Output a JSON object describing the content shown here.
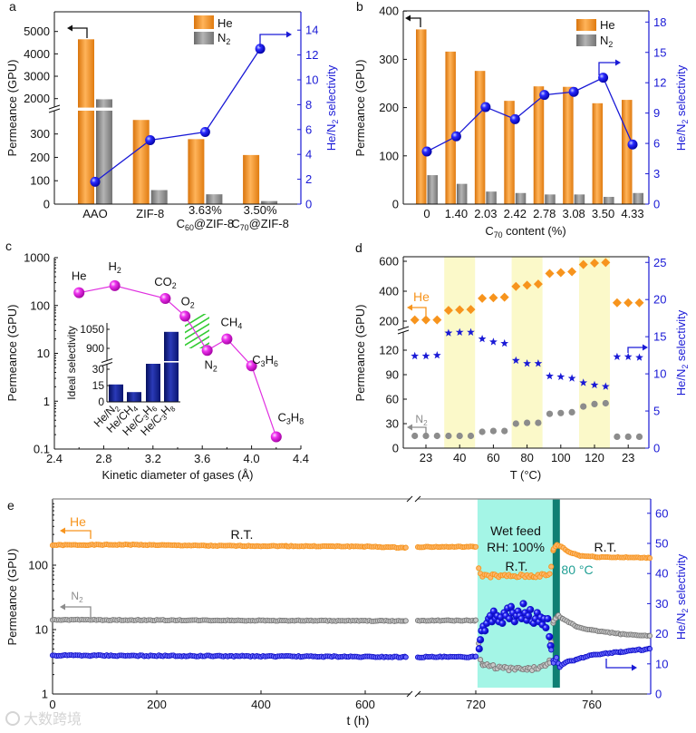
{
  "colors": {
    "he": "#f7941d",
    "n2": "#8c8c8c",
    "selectivity": "#1a1ad6",
    "c_points": "#e030e0",
    "inset_bars": "#0d1a8a",
    "wet_band": "#a4f5e6",
    "hot_band": "#0f7f73",
    "temp_band": "#fbf9c9",
    "hatch": "#33cc33"
  },
  "figure": {
    "watermark": "大数跨境"
  },
  "chart_data": [
    {
      "panel_label": "a",
      "type": "bar+line",
      "categories": [
        {
          "line1": [
            "AAO"
          ]
        },
        {
          "line1": [
            "ZIF-8"
          ]
        },
        {
          "line1": [
            "3.63%"
          ],
          "line2": [
            "C",
            "60",
            "@ZIF-8"
          ]
        },
        {
          "line1": [
            "3.50%"
          ],
          "line2": [
            "C",
            "70",
            "@ZIF-8"
          ]
        }
      ],
      "series": [
        {
          "name": [
            "He"
          ],
          "type": "bar",
          "axis": "left",
          "values": [
            4650,
            360,
            278,
            210
          ]
        },
        {
          "name": [
            "N",
            "2"
          ],
          "type": "bar",
          "axis": "left",
          "values": [
            1970,
            60,
            42,
            13
          ]
        },
        {
          "name": [
            "He/N",
            "2",
            " selectivity"
          ],
          "type": "line",
          "axis": "right",
          "values": [
            1.8,
            5.15,
            5.8,
            12.5
          ]
        }
      ],
      "ylabel": [
        "Permeance (GPU)"
      ],
      "y2label": [
        "He/N",
        "2",
        " selectivity"
      ],
      "yticks": [
        0,
        100,
        200,
        300,
        2000,
        3000,
        4000,
        5000
      ],
      "y_break": [
        400,
        1600
      ],
      "y2ticks": [
        0,
        2,
        4,
        6,
        8,
        10,
        12,
        14
      ],
      "y2lim": [
        0,
        15.5
      ],
      "legend": "top-right"
    },
    {
      "panel_label": "b",
      "type": "bar+line",
      "categories": [
        "0",
        "1.40",
        "2.03",
        "2.42",
        "2.78",
        "3.08",
        "3.50",
        "4.33"
      ],
      "series": [
        {
          "name": [
            "He"
          ],
          "type": "bar",
          "axis": "left",
          "values": [
            362,
            316,
            276,
            214,
            244,
            243,
            209,
            216
          ]
        },
        {
          "name": [
            "N",
            "2"
          ],
          "type": "bar",
          "axis": "left",
          "values": [
            60,
            42,
            26,
            23,
            20,
            20,
            15,
            23
          ]
        },
        {
          "name": [
            "He/N",
            "2",
            " selectivity"
          ],
          "type": "line",
          "axis": "right",
          "values": [
            5.2,
            6.7,
            9.6,
            8.4,
            10.8,
            11.1,
            12.5,
            5.9
          ]
        }
      ],
      "xlabel": [
        "C",
        "70",
        " content (%)"
      ],
      "ylabel": [
        "Permeance (GPU)"
      ],
      "y2label": [
        "He/N",
        "2",
        " selectivity"
      ],
      "yticks": [
        0,
        100,
        200,
        300,
        400
      ],
      "ylim": [
        0,
        400
      ],
      "y2ticks": [
        0,
        3,
        6,
        9,
        12,
        15,
        18
      ],
      "y2lim": [
        0,
        19.1
      ],
      "legend": "top-right"
    },
    {
      "panel_label": "c",
      "type": "line",
      "yscale": "log",
      "points": [
        {
          "label": [
            "He"
          ],
          "x": 2.6,
          "y": 185
        },
        {
          "label": [
            "H",
            "2"
          ],
          "x": 2.89,
          "y": 260
        },
        {
          "label": [
            "CO",
            "2"
          ],
          "x": 3.3,
          "y": 140
        },
        {
          "label": [
            "O",
            "2"
          ],
          "x": 3.46,
          "y": 60
        },
        {
          "label": [
            "N",
            "2"
          ],
          "x": 3.64,
          "y": 11.5
        },
        {
          "label": [
            "CH",
            "4"
          ],
          "x": 3.8,
          "y": 20
        },
        {
          "label": [
            "C",
            "3",
            "H",
            "6"
          ],
          "x": 4.0,
          "y": 5.5
        },
        {
          "label": [
            "C",
            "3",
            "H",
            "8"
          ],
          "x": 4.2,
          "y": 0.18
        }
      ],
      "xlabel": [
        "Kinetic diameter of gases (Å)"
      ],
      "ylabel": [
        "Permeance (GPU)"
      ],
      "xticks": [
        "2.4",
        "2.8",
        "3.2",
        "3.6",
        "4.0",
        "4.4"
      ],
      "xlim": [
        2.4,
        4.4
      ],
      "yticks": [
        "0.1",
        "1",
        "10",
        "100",
        "1000"
      ],
      "ylim": [
        0.1,
        1000
      ],
      "inset": {
        "type": "bar",
        "categories": [
          [
            "He/N",
            "2"
          ],
          [
            "He/CH",
            "4"
          ],
          [
            "He/C",
            "3",
            "H",
            "6"
          ],
          [
            "He/C",
            "3",
            "H",
            "8"
          ]
        ],
        "values": [
          16,
          9,
          35,
          1030
        ],
        "ylabel": [
          "Ideal selectivity"
        ],
        "yticks": [
          "0",
          "15",
          "30",
          "900",
          "1050"
        ],
        "y_break": [
          35,
          850
        ]
      }
    },
    {
      "panel_label": "d",
      "type": "scatter",
      "xlabel": [
        "T (°C)"
      ],
      "ylabel": [
        "Permeance (GPU)"
      ],
      "y2label": [
        "He/N",
        "2",
        " selectivity"
      ],
      "xticks": [
        "23",
        "40",
        "60",
        "80",
        "100",
        "120",
        "23"
      ],
      "highlighted_groups": [
        1,
        3,
        5
      ],
      "series": [
        {
          "name": [
            "He"
          ],
          "axis": "left",
          "marker": "diamond",
          "groups": [
            [
              208,
              208,
              208
            ],
            [
              272,
              276,
              278
            ],
            [
              352,
              356,
              360
            ],
            [
              432,
              440,
              448
            ],
            [
              518,
              524,
              530
            ],
            [
              578,
              588,
              592
            ],
            [
              178,
              178,
              178
            ]
          ]
        },
        {
          "name": [
            "N",
            "2"
          ],
          "axis": "left",
          "marker": "circle",
          "groups": [
            [
              15,
              15,
              15
            ],
            [
              15,
              15,
              15
            ],
            [
              20,
              21,
              21
            ],
            [
              30,
              31,
              31
            ],
            [
              42,
              43,
              44
            ],
            [
              51,
              54,
              55
            ],
            [
              14,
              14,
              14
            ]
          ]
        },
        {
          "name": [
            "He/N",
            "2",
            " selectivity"
          ],
          "axis": "right",
          "marker": "star",
          "groups": [
            [
              12.4,
              12.4,
              12.5
            ],
            [
              15.5,
              15.6,
              15.6
            ],
            [
              14.7,
              14.3,
              14.1
            ],
            [
              11.8,
              11.4,
              11.4
            ],
            [
              9.7,
              9.6,
              9.4
            ],
            [
              8.8,
              8.5,
              8.3
            ],
            [
              12.3,
              12.3,
              12.2
            ]
          ]
        }
      ],
      "yticks": [
        0,
        30,
        60,
        90,
        120,
        200,
        400,
        600
      ],
      "y_break": [
        140,
        180
      ],
      "y2ticks": [
        0,
        5,
        10,
        15,
        20,
        25
      ]
    },
    {
      "panel_label": "e",
      "type": "scatter",
      "yscale": "log",
      "xlabel": [
        "t (h)"
      ],
      "ylabel": [
        "Permeance (GPU)"
      ],
      "y2label": [
        "He/N",
        "2",
        " selectivity"
      ],
      "xticks": [
        0,
        200,
        400,
        600,
        720,
        760
      ],
      "x_break": [
        690,
        700
      ],
      "yticks": [
        "1",
        "10",
        "100"
      ],
      "y2ticks": [
        0,
        10,
        20,
        30,
        40,
        50,
        60
      ],
      "wet_feed_period_h": [
        720.6,
        746.5
      ],
      "heating_period_h": [
        746.5,
        749
      ],
      "annotations": {
        "rt1": [
          "R.T."
        ],
        "wet": [
          "Wet feed"
        ],
        "rh": [
          "RH: 100%"
        ],
        "rt2": [
          "R.T."
        ],
        "hot": [
          "80 °C"
        ],
        "rt3": [
          "R.T."
        ]
      },
      "series": [
        {
          "name": [
            "He"
          ],
          "axis": "left",
          "segments": [
            {
              "points": [
                [
                  0,
                  205
                ],
                [
                  150,
                  208
                ],
                [
                  300,
                  200
                ],
                [
                  450,
                  198
                ],
                [
                  600,
                  195
                ],
                [
                  678,
                  186
                ]
              ]
            },
            {
              "points": [
                [
                  700,
                  192
                ],
                [
                  720,
                  193
                ]
              ]
            },
            {
              "noisy": true,
              "points": [
                [
                  721,
                  95
                ],
                [
                  721.6,
                  70
                ],
                [
                  730,
                  67
                ],
                [
                  740,
                  68
                ],
                [
                  745.5,
                  70
                ]
              ]
            },
            {
              "points": [
                [
                  746,
                  95
                ],
                [
                  746.8,
                  180
                ],
                [
                  748,
                  205
                ],
                [
                  749.5,
                  195
                ],
                [
                  752,
                  160
                ],
                [
                  756,
                  140
                ],
                [
                  762,
                  134
                ],
                [
                  780,
                  130
                ]
              ]
            }
          ]
        },
        {
          "name": [
            "N",
            "2"
          ],
          "axis": "left",
          "segments": [
            {
              "points": [
                [
                  0,
                  14.2
                ],
                [
                  300,
                  13.9
                ],
                [
                  678,
                  13.6
                ]
              ]
            },
            {
              "points": [
                [
                  700,
                  13.8
                ],
                [
                  720,
                  13.8
                ]
              ]
            },
            {
              "noisy": true,
              "points": [
                [
                  721,
                  6
                ],
                [
                  721.6,
                  3.4
                ],
                [
                  722.5,
                  2.8
                ],
                [
                  730,
                  2.5
                ],
                [
                  738,
                  2.4
                ],
                [
                  744,
                  2.7
                ],
                [
                  745.5,
                  3.2
                ]
              ]
            },
            {
              "points": [
                [
                  746,
                  6.5
                ],
                [
                  746.8,
                  13.5
                ],
                [
                  748.5,
                  16.5
                ],
                [
                  750,
                  14.5
                ],
                [
                  755,
                  11
                ],
                [
                  760,
                  9.8
                ],
                [
                  770,
                  8.5
                ],
                [
                  780,
                  8
                ]
              ]
            }
          ]
        },
        {
          "name": [
            "He/N",
            "2",
            " selectivity"
          ],
          "axis": "right",
          "segments": [
            {
              "points": [
                [
                  0,
                  12.8
                ],
                [
                  300,
                  12.6
                ],
                [
                  678,
                  12.3
                ]
              ]
            },
            {
              "points": [
                [
                  700,
                  12.3
                ],
                [
                  720,
                  12.3
                ]
              ]
            },
            {
              "raw": true,
              "points": [
                [
                  721.2,
                  15
                ],
                [
                  721.6,
                  18
                ],
                [
                  722,
                  21
                ],
                [
                  722.6,
                  22.5
                ],
                [
                  723.2,
                  21
                ],
                [
                  723.8,
                  23.5
                ],
                [
                  724.4,
                  25
                ],
                [
                  725,
                  26
                ],
                [
                  725.6,
                  24
                ],
                [
                  726.2,
                  27.5
                ],
                [
                  726.8,
                  25
                ],
                [
                  727.4,
                  26
                ],
                [
                  728,
                  24
                ],
                [
                  728.6,
                  25.5
                ],
                [
                  729.2,
                  23.5
                ],
                [
                  729.8,
                  27
                ],
                [
                  730.4,
                  26
                ],
                [
                  731,
                  28.5
                ],
                [
                  731.6,
                  25
                ],
                [
                  732.2,
                  29
                ],
                [
                  732.8,
                  27
                ],
                [
                  733.4,
                  24
                ],
                [
                  734,
                  26
                ],
                [
                  734.6,
                  27.5
                ],
                [
                  735.2,
                  26
                ],
                [
                  735.8,
                  25
                ],
                [
                  736.4,
                  30
                ],
                [
                  737,
                  27
                ],
                [
                  737.6,
                  24.5
                ],
                [
                  738.2,
                  26
                ],
                [
                  738.8,
                  28
                ],
                [
                  739.4,
                  24
                ],
                [
                  740,
                  23.5
                ],
                [
                  740.6,
                  25
                ],
                [
                  741.2,
                  27
                ],
                [
                  741.8,
                  24
                ],
                [
                  742.4,
                  25.5
                ],
                [
                  743,
                  23
                ],
                [
                  743.6,
                  25
                ],
                [
                  744.2,
                  22
                ],
                [
                  744.8,
                  25
                ],
                [
                  745.4,
                  19
                ],
                [
                  745.8,
                  16
                ]
              ]
            },
            {
              "points": [
                [
                  746,
                  14.5
                ],
                [
                  746.8,
                  10.5
                ],
                [
                  747.8,
                  12
                ],
                [
                  749,
                  9
                ],
                [
                  751,
                  10.5
                ],
                [
                  755,
                  11.5
                ],
                [
                  760,
                  13
                ],
                [
                  770,
                  14
                ],
                [
                  780,
                  15
                ]
              ]
            }
          ]
        }
      ]
    }
  ]
}
